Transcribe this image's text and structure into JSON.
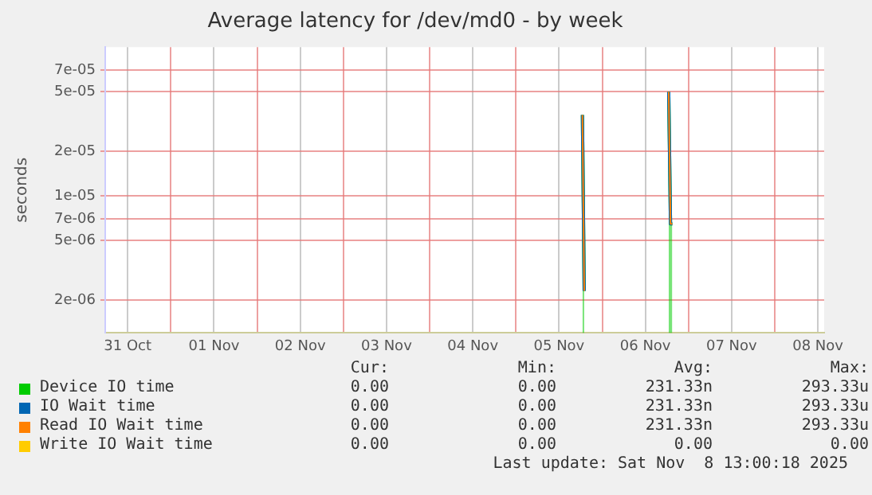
{
  "chart_data": {
    "type": "line",
    "title": "Average latency for /dev/md0 - by week",
    "ylabel": "seconds",
    "xlim": [
      "2025-10-31T05:45",
      "2025-11-08T13:45"
    ],
    "xticks": [
      {
        "value": "2025-10-31T12:00",
        "label": "31 Oct"
      },
      {
        "value": "2025-11-01T00:00",
        "label": null
      },
      {
        "value": "2025-11-01T12:00",
        "label": "01 Nov"
      },
      {
        "value": "2025-11-02T00:00",
        "label": null
      },
      {
        "value": "2025-11-02T12:00",
        "label": "02 Nov"
      },
      {
        "value": "2025-11-03T00:00",
        "label": null
      },
      {
        "value": "2025-11-03T12:00",
        "label": "03 Nov"
      },
      {
        "value": "2025-11-04T00:00",
        "label": null
      },
      {
        "value": "2025-11-04T12:00",
        "label": "04 Nov"
      },
      {
        "value": "2025-11-05T00:00",
        "label": null
      },
      {
        "value": "2025-11-05T12:00",
        "label": "05 Nov"
      },
      {
        "value": "2025-11-06T00:00",
        "label": null
      },
      {
        "value": "2025-11-06T12:00",
        "label": "06 Nov"
      },
      {
        "value": "2025-11-07T00:00",
        "label": null
      },
      {
        "value": "2025-11-07T12:00",
        "label": "07 Nov"
      },
      {
        "value": "2025-11-08T00:00",
        "label": null
      },
      {
        "value": "2025-11-08T12:00",
        "label": "08 Nov"
      }
    ],
    "log": true,
    "ylim": [
      1.2e-06,
      0.0001
    ],
    "yticks": [
      {
        "value": 2e-06,
        "label": "2e-06"
      },
      {
        "value": 5e-06,
        "label": "5e-06"
      },
      {
        "value": 7e-06,
        "label": "7e-06"
      },
      {
        "value": 1e-05,
        "label": "1e-05"
      },
      {
        "value": 2e-05,
        "label": "2e-05"
      },
      {
        "value": 5e-05,
        "label": "5e-05"
      },
      {
        "value": 7e-05,
        "label": "7e-05"
      }
    ],
    "grid": true,
    "legend": "bottom",
    "marker": "none",
    "line_style": "solid",
    "x": [
      "2025-11-05T18:30",
      "2025-11-05T19:00",
      "2025-11-06T18:30",
      "2025-11-06T19:00",
      "2025-11-06T19:30"
    ],
    "series": [
      {
        "name": "Device IO time",
        "type": "area",
        "color": "#00cc00",
        "values": [
          3.5e-05,
          2.3e-06,
          5e-05,
          6.5e-06,
          6.5e-06
        ]
      },
      {
        "name": "IO Wait time",
        "color": "#0066b3",
        "values": [
          3.5e-05,
          2.3e-06,
          5e-05,
          6.5e-06,
          6.5e-06
        ]
      },
      {
        "name": "Read IO Wait time",
        "color": "#ff8000",
        "values": [
          3.5e-05,
          2.3e-06,
          5e-05,
          6.5e-06,
          6.5e-06
        ]
      },
      {
        "name": "Write IO Wait time",
        "color": "#ffcc00",
        "values": [
          null,
          null,
          null,
          null,
          null
        ]
      }
    ],
    "annotations": [
      "Cur:",
      "Min:",
      "Avg:",
      "Max:",
      "0.00",
      "0.00",
      "231.33n",
      "293.33u",
      "0.00",
      "0.00",
      "231.33n",
      "293.33u",
      "0.00",
      "0.00",
      "231.33n",
      "293.33u",
      "0.00",
      "0.00",
      "0.00",
      "0.00",
      "Last update: Sat Nov  8 13:00:18 2025"
    ]
  }
}
